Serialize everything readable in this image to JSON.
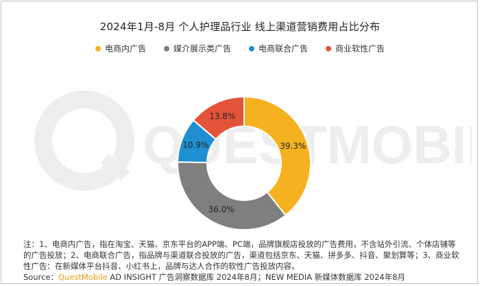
{
  "title": "2024年1月-8月 个人护理品行业 线上渠道营销费用占比分布",
  "chart_data": {
    "type": "pie",
    "variant": "donut",
    "title": "2024年1月-8月 个人护理品行业 线上渠道营销费用占比分布",
    "categories": [
      "电商内广告",
      "媒介展示类广告",
      "电商联合广告",
      "商业软性广告"
    ],
    "values": [
      39.3,
      36.0,
      10.9,
      13.8
    ],
    "labels": [
      "39.3%",
      "36.0%",
      "10.9%",
      "13.8%"
    ],
    "colors": [
      "#f5b120",
      "#7f7f7f",
      "#1f8fd1",
      "#e5533a"
    ],
    "legend_position": "top"
  },
  "legend": [
    {
      "label": "电商内广告",
      "color": "#f5b120"
    },
    {
      "label": "媒介展示类广告",
      "color": "#7f7f7f"
    },
    {
      "label": "电商联合广告",
      "color": "#1f8fd1"
    },
    {
      "label": "商业软性广告",
      "color": "#e5533a"
    }
  ],
  "watermark": "QUESTMOBILE",
  "note": "注：1、电商内广告，指在淘宝、天猫、京东平台的APP端、PC端，品牌旗舰店投放的广告费用，不含站外引流、个体店铺等的广告投放；2、电商联合广告，指品牌与渠道联合投放的广告，渠道包括京东、天猫、拼多多、抖音、聚划算等；3、商业软性广告：在新媒体平台抖音、小红书上，品牌与达人合作的软性广告投放内容。",
  "source": {
    "prefix": "Source：",
    "brand": "QuestMobile",
    "rest": " AD INSIGHT 广告洞察数据库 2024年8月；NEW MEDIA 新媒体数据库 2024年8月"
  }
}
